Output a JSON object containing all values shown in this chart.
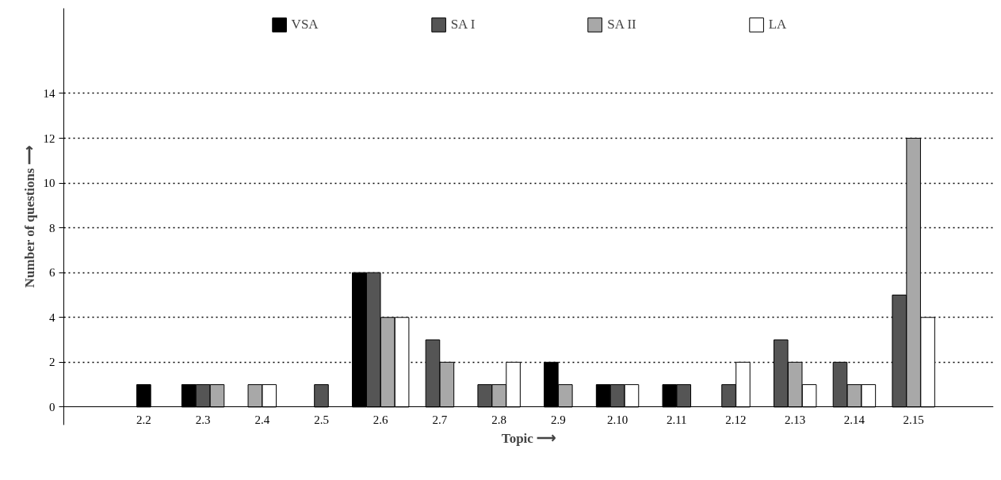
{
  "chart_data": {
    "type": "bar",
    "xlabel": "Topic ⟶",
    "ylabel": "Number of questions ⟶",
    "categories": [
      "2.2",
      "2.3",
      "2.4",
      "2.5",
      "2.6",
      "2.7",
      "2.8",
      "2.9",
      "2.10",
      "2.11",
      "2.12",
      "2.13",
      "2.14",
      "2.15"
    ],
    "series": [
      {
        "name": "VSA",
        "color": "#000000",
        "values": [
          1,
          1,
          null,
          null,
          6,
          null,
          null,
          2,
          1,
          1,
          null,
          null,
          null,
          null
        ]
      },
      {
        "name": "SA I",
        "color": "#555555",
        "values": [
          null,
          1,
          null,
          1,
          6,
          3,
          1,
          null,
          1,
          1,
          1,
          3,
          2,
          5
        ]
      },
      {
        "name": "SA II",
        "color": "#a8a8a8",
        "values": [
          null,
          1,
          1,
          null,
          4,
          2,
          1,
          1,
          null,
          null,
          null,
          2,
          1,
          12
        ]
      },
      {
        "name": "LA",
        "color": "#ffffff",
        "values": [
          null,
          null,
          1,
          null,
          4,
          null,
          2,
          null,
          1,
          null,
          2,
          1,
          1,
          4
        ]
      }
    ],
    "ylim": [
      -0.8,
      17.8
    ],
    "yticks": [
      0,
      2,
      4,
      6,
      8,
      10,
      12,
      14
    ],
    "grid": "y",
    "legend": "top"
  }
}
